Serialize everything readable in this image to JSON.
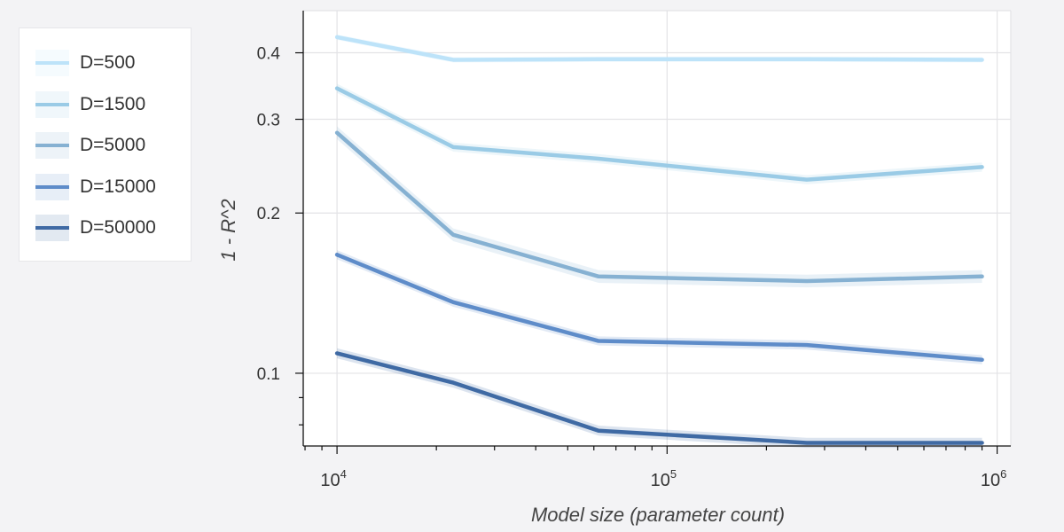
{
  "chart_data": {
    "type": "line",
    "title": "",
    "xlabel": "Model size (parameter count)",
    "ylabel": "1 - R^2",
    "xscale": "log",
    "yscale": "log",
    "xlim": [
      7900,
      1100000
    ],
    "ylim": [
      0.073,
      0.48
    ],
    "x_ticks": [
      {
        "value": 10000,
        "base": "10",
        "exp": "4"
      },
      {
        "value": 100000,
        "base": "10",
        "exp": "5"
      },
      {
        "value": 1000000,
        "base": "10",
        "exp": "6"
      }
    ],
    "y_ticks": [
      {
        "value": 0.1,
        "label": "0.1"
      },
      {
        "value": 0.2,
        "label": "0.2"
      },
      {
        "value": 0.3,
        "label": "0.3"
      },
      {
        "value": 0.4,
        "label": "0.4"
      }
    ],
    "grid": true,
    "legend_position": "left, outside plot",
    "x": [
      10000,
      22500,
      62000,
      265000,
      900000
    ],
    "series": [
      {
        "name": "D=500",
        "color": "#bde3f9",
        "values": [
          0.428,
          0.388,
          0.389,
          0.389,
          0.388
        ],
        "band": 0.012
      },
      {
        "name": "D=1500",
        "color": "#9acbe6",
        "values": [
          0.343,
          0.266,
          0.253,
          0.231,
          0.244
        ],
        "band": 0.02
      },
      {
        "name": "D=5000",
        "color": "#86b1d2",
        "values": [
          0.283,
          0.182,
          0.152,
          0.149,
          0.152
        ],
        "band": 0.028
      },
      {
        "name": "D=15000",
        "color": "#5e8cc9",
        "values": [
          0.167,
          0.136,
          0.115,
          0.113,
          0.106
        ],
        "band": 0.02
      },
      {
        "name": "D=50000",
        "color": "#3f6aa4",
        "values": [
          0.109,
          0.096,
          0.078,
          0.074,
          0.074
        ],
        "band": 0.022
      }
    ]
  }
}
